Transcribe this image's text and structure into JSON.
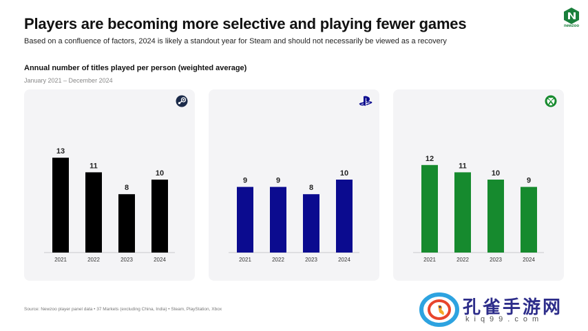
{
  "header": {
    "title": "Players are becoming more selective and playing fewer games",
    "subtitle": "Based on a confluence of factors, 2024 is likely a standout year for Steam and should not necessarily be viewed as a recovery"
  },
  "chart_heading": "Annual number of titles played per person (weighted average)",
  "chart_range": "January 2021 – December 2024",
  "logo_label": "newzoo",
  "source": "Source: Newzoo player panel data • 37 Markets (excluding China, India) • Steam, PlayStation, Xbox",
  "watermark": {
    "text": "孔雀手游网",
    "url": "kiq99.com"
  },
  "colors": {
    "steam": "#000000",
    "playstation": "#0b0b8f",
    "xbox": "#168a2e",
    "brand": "#1a7f3c"
  },
  "chart_data": [
    {
      "type": "bar",
      "platform": "Steam",
      "icon": "steam-icon",
      "categories": [
        "2021",
        "2022",
        "2023",
        "2024"
      ],
      "values": [
        13,
        11,
        8,
        10
      ],
      "ylim": [
        0,
        13
      ]
    },
    {
      "type": "bar",
      "platform": "PlayStation",
      "icon": "playstation-icon",
      "categories": [
        "2021",
        "2022",
        "2023",
        "2024"
      ],
      "values": [
        9,
        9,
        8,
        10
      ],
      "ylim": [
        0,
        13
      ]
    },
    {
      "type": "bar",
      "platform": "Xbox",
      "icon": "xbox-icon",
      "categories": [
        "2021",
        "2022",
        "2023",
        "2024"
      ],
      "values": [
        12,
        11,
        10,
        9
      ],
      "ylim": [
        0,
        13
      ]
    }
  ]
}
